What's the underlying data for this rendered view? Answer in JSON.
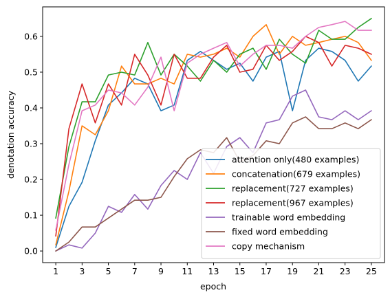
{
  "chart_data": {
    "type": "line",
    "title": "",
    "xlabel": "epoch",
    "ylabel": "denotation accuracy",
    "xlim": [
      0.0,
      26.0
    ],
    "ylim": [
      -0.0325,
      0.6825
    ],
    "xticks": [
      1,
      3,
      5,
      7,
      9,
      11,
      13,
      15,
      17,
      19,
      21,
      23,
      25
    ],
    "yticks": [
      0.0,
      0.1,
      0.2,
      0.3,
      0.4,
      0.5,
      0.6
    ],
    "ytick_labels": [
      "0.0",
      "0.1",
      "0.2",
      "0.3",
      "0.4",
      "0.5",
      "0.6"
    ],
    "grid": false,
    "legend_position": "lower-right",
    "x": [
      1,
      2,
      3,
      4,
      5,
      6,
      7,
      8,
      9,
      10,
      11,
      12,
      13,
      14,
      15,
      16,
      17,
      18,
      19,
      20,
      21,
      22,
      23,
      24,
      25
    ],
    "series": [
      {
        "name": "attention only(480 examples)",
        "color": "#1f77b4",
        "values": [
          0.01,
          0.125,
          0.192,
          0.308,
          0.408,
          0.442,
          0.483,
          0.467,
          0.392,
          0.408,
          0.533,
          0.558,
          0.533,
          0.508,
          0.525,
          0.475,
          0.542,
          0.558,
          0.392,
          0.533,
          0.567,
          0.558,
          0.533,
          0.475,
          0.517
        ]
      },
      {
        "name": "concatenation(679 examples)",
        "color": "#ff7f0e",
        "values": [
          0.017,
          0.167,
          0.35,
          0.325,
          0.392,
          0.517,
          0.467,
          0.467,
          0.483,
          0.467,
          0.55,
          0.542,
          0.55,
          0.567,
          0.542,
          0.6,
          0.633,
          0.55,
          0.6,
          0.575,
          0.583,
          0.592,
          0.6,
          0.583,
          0.533
        ]
      },
      {
        "name": "replacement(727 examples)",
        "color": "#2ca02c",
        "values": [
          0.092,
          0.292,
          0.417,
          0.417,
          0.492,
          0.5,
          0.492,
          0.583,
          0.492,
          0.55,
          0.517,
          0.475,
          0.533,
          0.5,
          0.55,
          0.567,
          0.508,
          0.592,
          0.55,
          0.525,
          0.617,
          0.592,
          0.592,
          0.625,
          0.65
        ]
      },
      {
        "name": "replacement(967 examples)",
        "color": "#d62728",
        "values": [
          0.042,
          0.342,
          0.467,
          0.358,
          0.467,
          0.408,
          0.55,
          0.492,
          0.408,
          0.55,
          0.483,
          0.483,
          0.542,
          0.575,
          0.5,
          0.508,
          0.575,
          0.533,
          0.558,
          0.6,
          0.583,
          0.517,
          0.575,
          0.567,
          0.55
        ]
      },
      {
        "name": "trainable word embedding",
        "color": "#9467bd",
        "values": [
          0.0,
          0.017,
          0.008,
          0.05,
          0.125,
          0.108,
          0.158,
          0.117,
          0.183,
          0.225,
          0.2,
          0.275,
          0.217,
          0.292,
          0.317,
          0.275,
          0.358,
          0.367,
          0.433,
          0.45,
          0.375,
          0.367,
          0.392,
          0.367,
          0.392
        ]
      },
      {
        "name": "fixed word embedding",
        "color": "#8c564b",
        "values": [
          0.0,
          0.025,
          0.067,
          0.067,
          0.092,
          0.117,
          0.142,
          0.142,
          0.15,
          0.208,
          0.258,
          0.283,
          0.275,
          0.317,
          0.25,
          0.267,
          0.308,
          0.3,
          0.358,
          0.375,
          0.342,
          0.342,
          0.358,
          0.342,
          0.367
        ]
      },
      {
        "name": "copy mechanism",
        "color": "#e377c2",
        "values": [
          0.058,
          0.242,
          0.392,
          0.408,
          0.45,
          0.442,
          0.408,
          0.458,
          0.542,
          0.392,
          0.525,
          0.55,
          0.567,
          0.583,
          0.517,
          0.55,
          0.575,
          0.575,
          0.567,
          0.6,
          0.625,
          0.633,
          0.642,
          0.617,
          0.617
        ]
      }
    ]
  }
}
